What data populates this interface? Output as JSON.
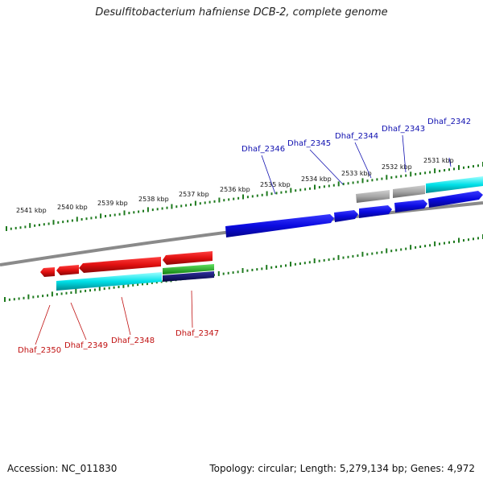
{
  "title": "Desulfitobacterium hafniense DCB-2, complete genome",
  "footer": {
    "accession": "Accession: NC_011830",
    "summary": "Topology: circular; Length: 5,279,134 bp; Genes: 4,972"
  },
  "colors": {
    "backbone": "#888888",
    "ticks": "#1e7a1e",
    "forward_label": "#1010b0",
    "reverse_label": "#c01010",
    "cds_forward": "#0a0ae0",
    "cds_reverse": "#e01010",
    "cds_gray": "#a0a0a0",
    "cyan": "#00e0e8",
    "green": "#20b020",
    "navy": "#101070"
  },
  "kbp_labels": [
    "2531 kbp",
    "2532 kbp",
    "2533 kbp",
    "2534 kbp",
    "2535 kbp",
    "2536 kbp",
    "2537 kbp",
    "2538 kbp",
    "2539 kbp",
    "2540 kbp",
    "2541 kbp"
  ],
  "forward_genes": [
    "Dhaf_2342",
    "Dhaf_2343",
    "Dhaf_2344",
    "Dhaf_2345",
    "Dhaf_2346"
  ],
  "reverse_genes": [
    "Dhaf_2347",
    "Dhaf_2348",
    "Dhaf_2349",
    "Dhaf_2350"
  ]
}
